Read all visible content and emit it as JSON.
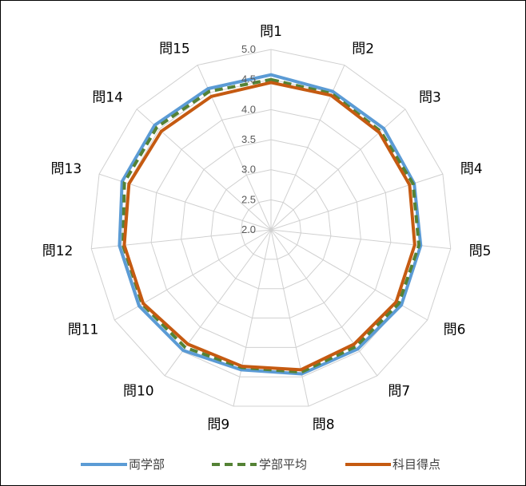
{
  "chart_data": {
    "type": "radar",
    "categories": [
      "問1",
      "問2",
      "問3",
      "問4",
      "問5",
      "問6",
      "問7",
      "問8",
      "問9",
      "問10",
      "問11",
      "問12",
      "問13",
      "問14",
      "問15"
    ],
    "rlim": [
      2.0,
      5.0
    ],
    "ticks": [
      "2.0",
      "2.5",
      "3.0",
      "3.5",
      "4.0",
      "4.5",
      "5.0"
    ],
    "tick_values": [
      2.0,
      2.5,
      3.0,
      3.5,
      4.0,
      4.5,
      5.0
    ],
    "grid": true,
    "legend_position": "bottom",
    "series": [
      {
        "name": "両学部",
        "color": "#5B9BD5",
        "style": "solid",
        "values": [
          4.58,
          4.52,
          4.52,
          4.5,
          4.5,
          4.5,
          4.45,
          4.45,
          4.38,
          4.48,
          4.53,
          4.53,
          4.6,
          4.6,
          4.57
        ]
      },
      {
        "name": "学部平均",
        "color": "#548235",
        "style": "dashed",
        "values": [
          4.5,
          4.48,
          4.45,
          4.48,
          4.47,
          4.45,
          4.4,
          4.42,
          4.34,
          4.42,
          4.47,
          4.47,
          4.56,
          4.55,
          4.52
        ]
      },
      {
        "name": "科目得点",
        "color": "#C55A11",
        "style": "solid",
        "values": [
          4.45,
          4.45,
          4.42,
          4.42,
          4.4,
          4.4,
          4.35,
          4.38,
          4.32,
          4.35,
          4.45,
          4.45,
          4.48,
          4.45,
          4.43
        ]
      }
    ]
  }
}
